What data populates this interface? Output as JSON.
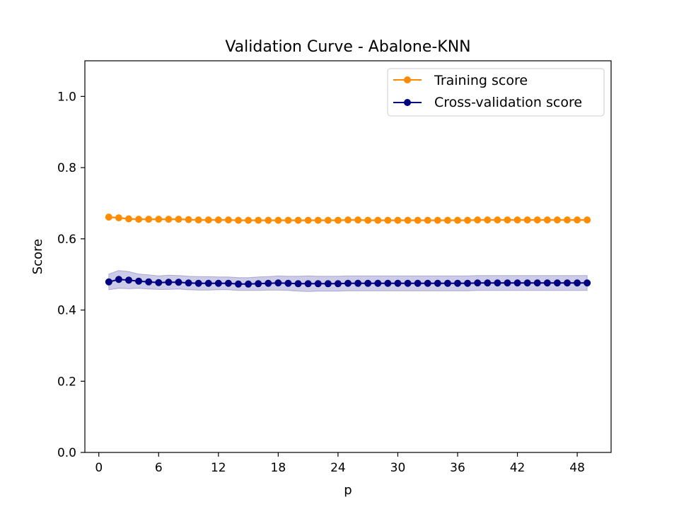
{
  "chart_data": {
    "type": "line",
    "title": "Validation Curve - Abalone-KNN",
    "xlabel": "p",
    "ylabel": "Score",
    "xlim": [
      -1.4,
      51.4
    ],
    "ylim": [
      0.0,
      1.1
    ],
    "xticks": [
      0,
      6,
      12,
      18,
      24,
      30,
      36,
      42,
      48
    ],
    "yticks": [
      0.0,
      0.2,
      0.4,
      0.6,
      0.8,
      1.0
    ],
    "xtick_labels": [
      "0",
      "6",
      "12",
      "18",
      "24",
      "30",
      "36",
      "42",
      "48"
    ],
    "ytick_labels": [
      "0.0",
      "0.2",
      "0.4",
      "0.6",
      "0.8",
      "1.0"
    ],
    "grid": false,
    "legend_position": "top-right",
    "x": [
      1,
      2,
      3,
      4,
      5,
      6,
      7,
      8,
      9,
      10,
      11,
      12,
      13,
      14,
      15,
      16,
      17,
      18,
      19,
      20,
      21,
      22,
      23,
      24,
      25,
      26,
      27,
      28,
      29,
      30,
      31,
      32,
      33,
      34,
      35,
      36,
      37,
      38,
      39,
      40,
      41,
      42,
      43,
      44,
      45,
      46,
      47,
      48,
      49
    ],
    "series": [
      {
        "name": "Training score",
        "color": "#ff8c00",
        "values": [
          0.661,
          0.659,
          0.656,
          0.655,
          0.655,
          0.655,
          0.655,
          0.655,
          0.654,
          0.653,
          0.653,
          0.653,
          0.653,
          0.652,
          0.652,
          0.652,
          0.652,
          0.652,
          0.652,
          0.652,
          0.652,
          0.652,
          0.652,
          0.652,
          0.653,
          0.653,
          0.652,
          0.652,
          0.652,
          0.652,
          0.652,
          0.652,
          0.652,
          0.652,
          0.652,
          0.652,
          0.652,
          0.653,
          0.653,
          0.653,
          0.653,
          0.653,
          0.653,
          0.653,
          0.653,
          0.653,
          0.653,
          0.653,
          0.653
        ],
        "band": [
          0.002,
          0.002,
          0.002,
          0.002,
          0.002,
          0.002,
          0.002,
          0.002,
          0.002,
          0.002,
          0.002,
          0.002,
          0.002,
          0.002,
          0.002,
          0.002,
          0.002,
          0.002,
          0.002,
          0.002,
          0.002,
          0.002,
          0.002,
          0.002,
          0.002,
          0.002,
          0.002,
          0.002,
          0.002,
          0.002,
          0.002,
          0.002,
          0.002,
          0.002,
          0.002,
          0.002,
          0.002,
          0.002,
          0.002,
          0.002,
          0.002,
          0.002,
          0.002,
          0.002,
          0.002,
          0.002,
          0.002,
          0.002,
          0.002
        ]
      },
      {
        "name": "Cross-validation score",
        "color": "#000080",
        "band_color": "#000080",
        "values": [
          0.479,
          0.486,
          0.484,
          0.481,
          0.479,
          0.477,
          0.478,
          0.478,
          0.476,
          0.475,
          0.475,
          0.475,
          0.475,
          0.473,
          0.473,
          0.474,
          0.475,
          0.476,
          0.475,
          0.474,
          0.474,
          0.474,
          0.474,
          0.474,
          0.475,
          0.475,
          0.475,
          0.475,
          0.475,
          0.475,
          0.475,
          0.475,
          0.475,
          0.475,
          0.475,
          0.475,
          0.475,
          0.476,
          0.476,
          0.476,
          0.476,
          0.476,
          0.476,
          0.476,
          0.476,
          0.476,
          0.476,
          0.476,
          0.476
        ],
        "band": [
          0.022,
          0.025,
          0.024,
          0.02,
          0.02,
          0.019,
          0.02,
          0.019,
          0.019,
          0.019,
          0.019,
          0.018,
          0.018,
          0.018,
          0.018,
          0.019,
          0.019,
          0.02,
          0.02,
          0.021,
          0.022,
          0.021,
          0.021,
          0.021,
          0.021,
          0.021,
          0.021,
          0.021,
          0.021,
          0.021,
          0.021,
          0.021,
          0.021,
          0.021,
          0.021,
          0.021,
          0.021,
          0.021,
          0.021,
          0.021,
          0.021,
          0.021,
          0.021,
          0.021,
          0.021,
          0.021,
          0.021,
          0.021,
          0.021
        ]
      }
    ]
  }
}
